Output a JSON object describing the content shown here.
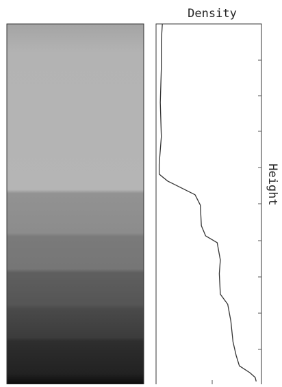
{
  "chart_data": {
    "type": "line",
    "title": "Density",
    "ylabel": "Height",
    "x": [
      100,
      95.3,
      87.7,
      78.2,
      68.7,
      61.1,
      58.3,
      56.4,
      54.5,
      52.6,
      49.7,
      44.0,
      41.2,
      39.3,
      34.5,
      30.7,
      25.0,
      22.2,
      17.5,
      11.8,
      8.0,
      5.1,
      3.2,
      1.9,
      0.8
    ],
    "values": [
      0.06,
      0.05,
      0.05,
      0.04,
      0.05,
      0.03,
      0.03,
      0.11,
      0.24,
      0.37,
      0.42,
      0.43,
      0.47,
      0.58,
      0.61,
      0.6,
      0.61,
      0.68,
      0.71,
      0.73,
      0.76,
      0.79,
      0.89,
      0.94,
      0.95
    ],
    "xlim": [
      0,
      100
    ],
    "ylim": [
      0,
      1
    ],
    "color": "#333333"
  }
}
